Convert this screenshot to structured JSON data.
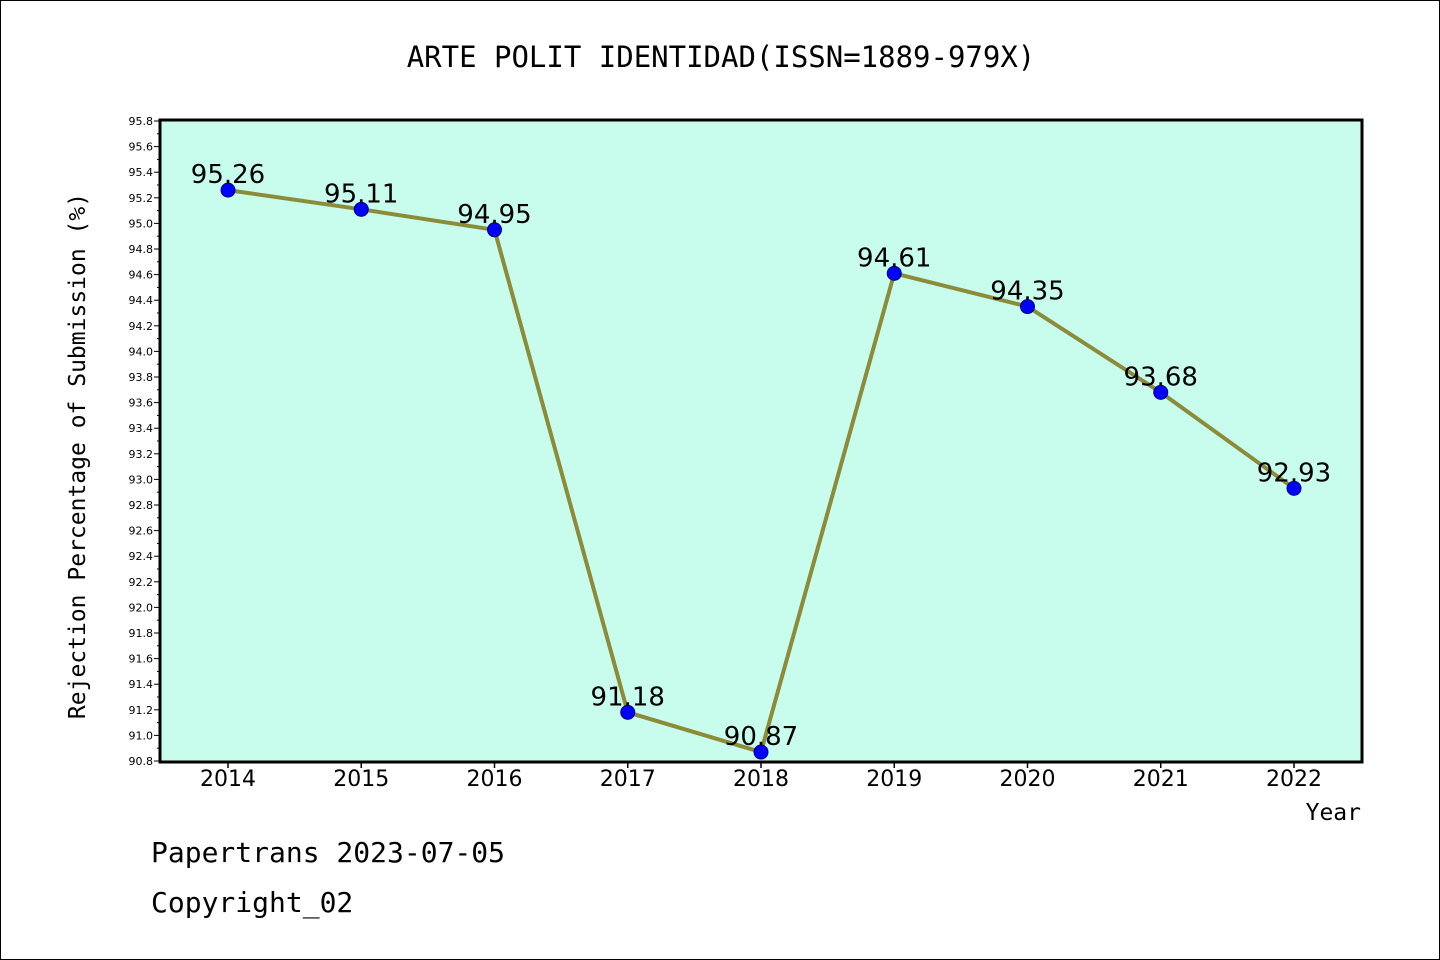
{
  "footer": {
    "line1": "Papertrans 2023-07-05",
    "line2": "Copyright_02"
  },
  "colors": {
    "plot_background": "#c8fcec",
    "line": "#8b8b3a",
    "marker": "#0000ff",
    "axis": "#000000"
  },
  "chart_data": {
    "type": "line",
    "title": "ARTE POLIT IDENTIDAD(ISSN=1889-979X)",
    "xlabel": "Year",
    "ylabel": "Rejection Percentage of Submission (%)",
    "categories": [
      "2014",
      "2015",
      "2016",
      "2017",
      "2018",
      "2019",
      "2020",
      "2021",
      "2022"
    ],
    "series": [
      {
        "values": [
          95.26,
          95.11,
          94.95,
          91.18,
          90.87,
          94.61,
          94.35,
          93.68,
          92.93
        ],
        "data_labels": [
          "95.26",
          "95.11",
          "94.95",
          "91.18",
          "90.87",
          "94.61",
          "94.35",
          "93.68",
          "92.93"
        ]
      }
    ],
    "ylim": [
      90.8,
      95.8
    ],
    "yticks": [
      "90.8",
      "91.0",
      "91.2",
      "91.4",
      "91.6",
      "91.8",
      "92.0",
      "92.2",
      "92.4",
      "92.6",
      "92.8",
      "93.0",
      "93.2",
      "93.4",
      "93.6",
      "93.8",
      "94.0",
      "94.2",
      "94.4",
      "94.6",
      "94.8",
      "95.0",
      "95.2",
      "95.4",
      "95.6",
      "95.8"
    ],
    "grid": false,
    "legend": "none"
  }
}
